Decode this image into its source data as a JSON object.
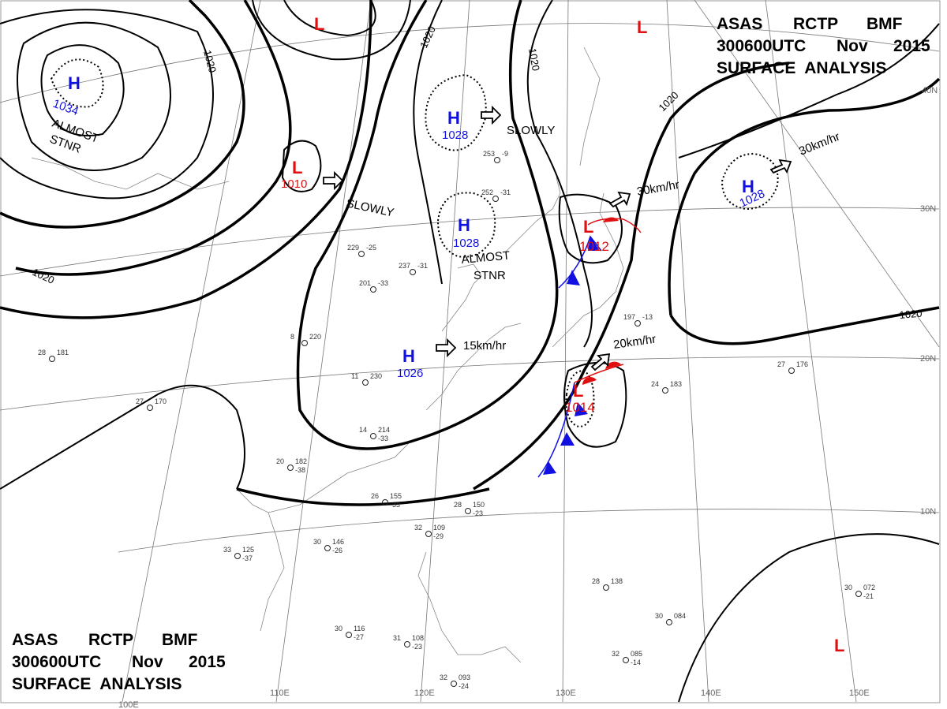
{
  "header": {
    "line1": [
      "ASAS",
      "RCTP",
      "BMF"
    ],
    "line2": [
      "300600UTC",
      "Nov",
      "2015"
    ],
    "line3": "SURFACE  ANALYSIS"
  },
  "longitudes": [
    "100E",
    "110E",
    "120E",
    "130E",
    "140E",
    "150E"
  ],
  "latitudes": [
    "40N",
    "30N",
    "20N",
    "10N"
  ],
  "isobar_labels": [
    "1020",
    "1020",
    "1020",
    "1020",
    "1020",
    "1020"
  ],
  "pressure_systems": [
    {
      "type": "H",
      "value": "1034"
    },
    {
      "type": "L",
      "value": "1010"
    },
    {
      "type": "L",
      "value": ""
    },
    {
      "type": "H",
      "value": "1028"
    },
    {
      "type": "H",
      "value": "1028"
    },
    {
      "type": "H",
      "value": "1026"
    },
    {
      "type": "L",
      "value": "1012"
    },
    {
      "type": "L",
      "value": "1014"
    },
    {
      "type": "H",
      "value": "1028"
    },
    {
      "type": "L",
      "value": ""
    },
    {
      "type": "L",
      "value": ""
    }
  ],
  "movements": [
    {
      "text1": "ALMOST",
      "text2": "STNR"
    },
    {
      "text1": "SLOWLY"
    },
    {
      "text1": "SLOWLY"
    },
    {
      "text1": "ALMOST",
      "text2": "STNR"
    },
    {
      "text1": "15km/hr"
    },
    {
      "text1": "30km/hr"
    },
    {
      "text1": "20km/hr"
    },
    {
      "text1": "30km/hr"
    }
  ],
  "stations": [
    {
      "t": "28",
      "p": "181"
    },
    {
      "t": "27",
      "p": "170"
    },
    {
      "t": "20",
      "p": "182",
      "d": "-38"
    },
    {
      "t": "14",
      "p": "214",
      "d": "-33"
    },
    {
      "t": "11",
      "p": "230"
    },
    {
      "t": "8",
      "p": "220"
    },
    {
      "t": "33",
      "p": "125",
      "d": "-37"
    },
    {
      "t": "30",
      "p": "146",
      "d": "-26"
    },
    {
      "t": "26",
      "p": "155",
      "d": "-33"
    },
    {
      "t": "28",
      "p": "150",
      "d": "-23"
    },
    {
      "t": "32",
      "p": "109",
      "d": "-29"
    },
    {
      "t": "31",
      "p": "108",
      "d": "-23"
    },
    {
      "t": "32",
      "p": "093",
      "d": "-24"
    },
    {
      "t": "30",
      "p": "116",
      "d": "-27"
    },
    {
      "t": "28",
      "p": "138"
    },
    {
      "t": "30",
      "p": "084"
    },
    {
      "t": "32",
      "p": "085",
      "d": "-14"
    },
    {
      "t": "30",
      "p": "072",
      "d": "-21"
    },
    {
      "t": "27",
      "p": "176"
    },
    {
      "t": "24",
      "p": "183"
    },
    {
      "t": "237",
      "p": "-31"
    },
    {
      "t": "201",
      "p": "-33"
    },
    {
      "t": "197",
      "p": "-13"
    },
    {
      "t": "252",
      "p": "-31"
    },
    {
      "t": "253",
      "p": "-9"
    },
    {
      "t": "229",
      "p": "-25"
    }
  ]
}
